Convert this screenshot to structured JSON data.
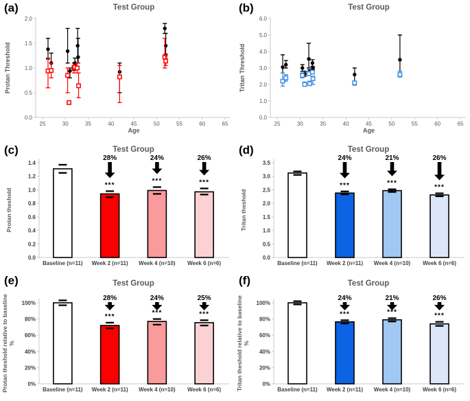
{
  "figure_title": "Test Group figure panels",
  "colors": {
    "axis_line": "#c9c9c9",
    "muted_text": "#595959",
    "dark_text": "#404040",
    "black": "#000000",
    "marker_red": "#ff0000",
    "marker_blue": "#3d8fe2",
    "bar_red": "#fb0000",
    "bar_salmon": "#f99b9c",
    "bar_pink": "#fbd1d4",
    "bar_blue_dark": "#0c63e3",
    "bar_blue_med": "#a1c8f3",
    "bar_blue_light": "#dbe7f8",
    "bar_white": "#ffffff"
  },
  "chart_data": [
    {
      "id": "a",
      "letter": "(a)",
      "type": "scatter",
      "title": "Test Group",
      "xlabel": "Age",
      "ylabel": "Protan Threshold",
      "xlim": [
        25,
        65
      ],
      "xtick_step": 5,
      "ylim": [
        0,
        2.0
      ],
      "ytick_step": 0.5,
      "ytick_decimals": 1,
      "legend": "none",
      "series": [
        {
          "name": "black-filled-circles",
          "marker": "circle",
          "color": "#000000",
          "points": [
            [
              26.2,
              1.38,
              1.18,
              1.6
            ],
            [
              26.9,
              1.1,
              0.95,
              1.3
            ],
            [
              30.5,
              1.34,
              1.1,
              1.8
            ],
            [
              31.0,
              0.94,
              0.8,
              1.0
            ],
            [
              31.9,
              1.02,
              0.95,
              1.1
            ],
            [
              32.1,
              1.1,
              1.0,
              1.2
            ],
            [
              32.7,
              1.45,
              1.1,
              1.8
            ],
            [
              32.8,
              1.22,
              1.1,
              1.6
            ],
            [
              41.9,
              0.92,
              0.5,
              1.1
            ],
            [
              51.8,
              1.8,
              1.7,
              1.9
            ],
            [
              52.0,
              1.45,
              1.28,
              1.7
            ]
          ]
        },
        {
          "name": "red-open-squares",
          "marker": "open-square",
          "color": "#ff0000",
          "points": [
            [
              26.2,
              0.94,
              0.6,
              1.2
            ],
            [
              26.9,
              0.95,
              0.8,
              1.1
            ],
            [
              30.5,
              0.85,
              0.5,
              1.0
            ],
            [
              30.8,
              0.3,
              null,
              null
            ],
            [
              31.9,
              1.0,
              0.9,
              1.05
            ],
            [
              32.1,
              1.02,
              null,
              null
            ],
            [
              32.6,
              1.0,
              0.9,
              1.1
            ],
            [
              32.9,
              0.64,
              0.4,
              0.9
            ],
            [
              41.9,
              0.82,
              0.3,
              1.05
            ],
            [
              51.8,
              1.22,
              1.0,
              1.6
            ],
            [
              52.0,
              1.14,
              1.05,
              1.25
            ]
          ]
        }
      ]
    },
    {
      "id": "b",
      "letter": "(b)",
      "type": "scatter",
      "title": "Test Group",
      "xlabel": "Age",
      "ylabel": "Tritan Threshold",
      "xlim": [
        25,
        65
      ],
      "xtick_step": 5,
      "ylim": [
        0,
        6.0
      ],
      "ytick_step": 1.0,
      "ytick_decimals": 1,
      "legend": "none",
      "series": [
        {
          "name": "black-filled-circles",
          "marker": "circle",
          "color": "#000000",
          "points": [
            [
              26.2,
              3.05,
              2.7,
              3.8
            ],
            [
              26.9,
              3.2,
              3.0,
              3.45
            ],
            [
              30.5,
              3.0,
              2.8,
              3.2
            ],
            [
              31.0,
              2.65,
              2.5,
              2.8
            ],
            [
              31.9,
              3.55,
              3.0,
              4.5
            ],
            [
              32.1,
              2.8,
              2.7,
              2.9
            ],
            [
              32.7,
              3.3,
              3.1,
              3.5
            ],
            [
              32.8,
              2.95,
              2.85,
              3.05
            ],
            [
              41.9,
              2.6,
              2.2,
              3.0
            ],
            [
              51.8,
              3.5,
              2.8,
              5.0
            ]
          ]
        },
        {
          "name": "blue-open-squares",
          "marker": "open-square",
          "color": "#3d8fe2",
          "points": [
            [
              26.2,
              2.2,
              1.9,
              2.7
            ],
            [
              26.9,
              2.4,
              2.2,
              2.6
            ],
            [
              30.5,
              2.55,
              2.4,
              2.7
            ],
            [
              31.0,
              2.0,
              1.9,
              2.15
            ],
            [
              31.9,
              2.65,
              2.55,
              2.8
            ],
            [
              32.1,
              2.05,
              1.95,
              2.2
            ],
            [
              32.7,
              2.75,
              2.65,
              2.85
            ],
            [
              32.8,
              2.35,
              2.0,
              2.5
            ],
            [
              41.9,
              2.1,
              1.95,
              2.2
            ],
            [
              51.8,
              2.6,
              2.45,
              2.8
            ]
          ]
        }
      ]
    },
    {
      "id": "c",
      "letter": "(c)",
      "type": "bar",
      "title": "Test Group",
      "ylabel_lines": [
        "Protan theshold"
      ],
      "ylim": [
        0,
        1.4
      ],
      "ytick_step": 0.2,
      "ytick_decimals": 1,
      "ytick_format": "number",
      "categories": [
        "Baseline (n=11)",
        "Week 2 (n=11)",
        "Week 4 (n=10)",
        "Week 6 (n=6)"
      ],
      "bars": [
        {
          "value": 1.31,
          "lo": 1.25,
          "hi": 1.37,
          "fill": "#ffffff",
          "drop_label": null,
          "stars": null
        },
        {
          "value": 0.94,
          "lo": 0.89,
          "hi": 0.98,
          "fill": "#fb0000",
          "drop_label": "28%",
          "stars": "***"
        },
        {
          "value": 0.99,
          "lo": 0.94,
          "hi": 1.04,
          "fill": "#f99b9c",
          "drop_label": "24%",
          "stars": "***"
        },
        {
          "value": 0.97,
          "lo": 0.93,
          "hi": 1.02,
          "fill": "#fbd1d4",
          "drop_label": "26%",
          "stars": "***"
        }
      ]
    },
    {
      "id": "d",
      "letter": "(d)",
      "type": "bar",
      "title": "Test Group",
      "ylabel_lines": [
        "Tritan theshold"
      ],
      "ylim": [
        0,
        3.5
      ],
      "ytick_step": 0.5,
      "ytick_decimals": 1,
      "ytick_format": "number",
      "categories": [
        "Baseline (n=11)",
        "Week 2 (n=11)",
        "Week 4 (n=10)",
        "Week 6 (n=6)"
      ],
      "bars": [
        {
          "value": 3.12,
          "lo": 3.05,
          "hi": 3.18,
          "fill": "#ffffff",
          "drop_label": null,
          "stars": null
        },
        {
          "value": 2.38,
          "lo": 2.33,
          "hi": 2.44,
          "fill": "#0c63e3",
          "drop_label": "24%",
          "stars": "***"
        },
        {
          "value": 2.47,
          "lo": 2.42,
          "hi": 2.52,
          "fill": "#a1c8f3",
          "drop_label": "21%",
          "stars": "***"
        },
        {
          "value": 2.31,
          "lo": 2.26,
          "hi": 2.37,
          "fill": "#dbe7f8",
          "drop_label": "26%",
          "stars": "***"
        }
      ]
    },
    {
      "id": "e",
      "letter": "(e)",
      "type": "bar",
      "title": "Test Group",
      "ylabel_lines": [
        "Protan theshold relative to baseline",
        "%"
      ],
      "ylim": [
        0,
        100
      ],
      "ytick_step": 20,
      "ytick_decimals": 0,
      "ytick_format": "percent",
      "categories": [
        "Baseline (n=11)",
        "Week 2 (n=11)",
        "Week 4 (n=10)",
        "Week 6 (n=6)"
      ],
      "bars": [
        {
          "value": 100,
          "lo": 97,
          "hi": 103,
          "fill": "#ffffff",
          "drop_label": null,
          "stars": null
        },
        {
          "value": 72,
          "lo": 68.5,
          "hi": 75.5,
          "fill": "#fb0000",
          "drop_label": "28%",
          "stars": "***"
        },
        {
          "value": 77,
          "lo": 73,
          "hi": 80,
          "fill": "#f99b9c",
          "drop_label": "24%",
          "stars": "***"
        },
        {
          "value": 75.5,
          "lo": 72,
          "hi": 78.5,
          "fill": "#fbd1d4",
          "drop_label": "25%",
          "stars": "***"
        }
      ]
    },
    {
      "id": "f",
      "letter": "(f)",
      "type": "bar",
      "title": "Test Group",
      "ylabel_lines": [
        "Tritan theshold relative to baseline",
        "%"
      ],
      "ylim": [
        0,
        100
      ],
      "ytick_step": 20,
      "ytick_decimals": 0,
      "ytick_format": "percent",
      "categories": [
        "Baseline (n=11)",
        "Week 2 (n=11)",
        "Week 4 (n=10)",
        "Week 6 (n=6)"
      ],
      "bars": [
        {
          "value": 100,
          "lo": 98,
          "hi": 102,
          "fill": "#ffffff",
          "drop_label": null,
          "stars": null
        },
        {
          "value": 76.5,
          "lo": 74.5,
          "hi": 78.5,
          "fill": "#0c63e3",
          "drop_label": "24%",
          "stars": "***"
        },
        {
          "value": 79,
          "lo": 77,
          "hi": 81,
          "fill": "#a1c8f3",
          "drop_label": "21%",
          "stars": "***"
        },
        {
          "value": 74,
          "lo": 71.5,
          "hi": 76.5,
          "fill": "#dbe7f8",
          "drop_label": "26%",
          "stars": "***"
        }
      ]
    }
  ]
}
